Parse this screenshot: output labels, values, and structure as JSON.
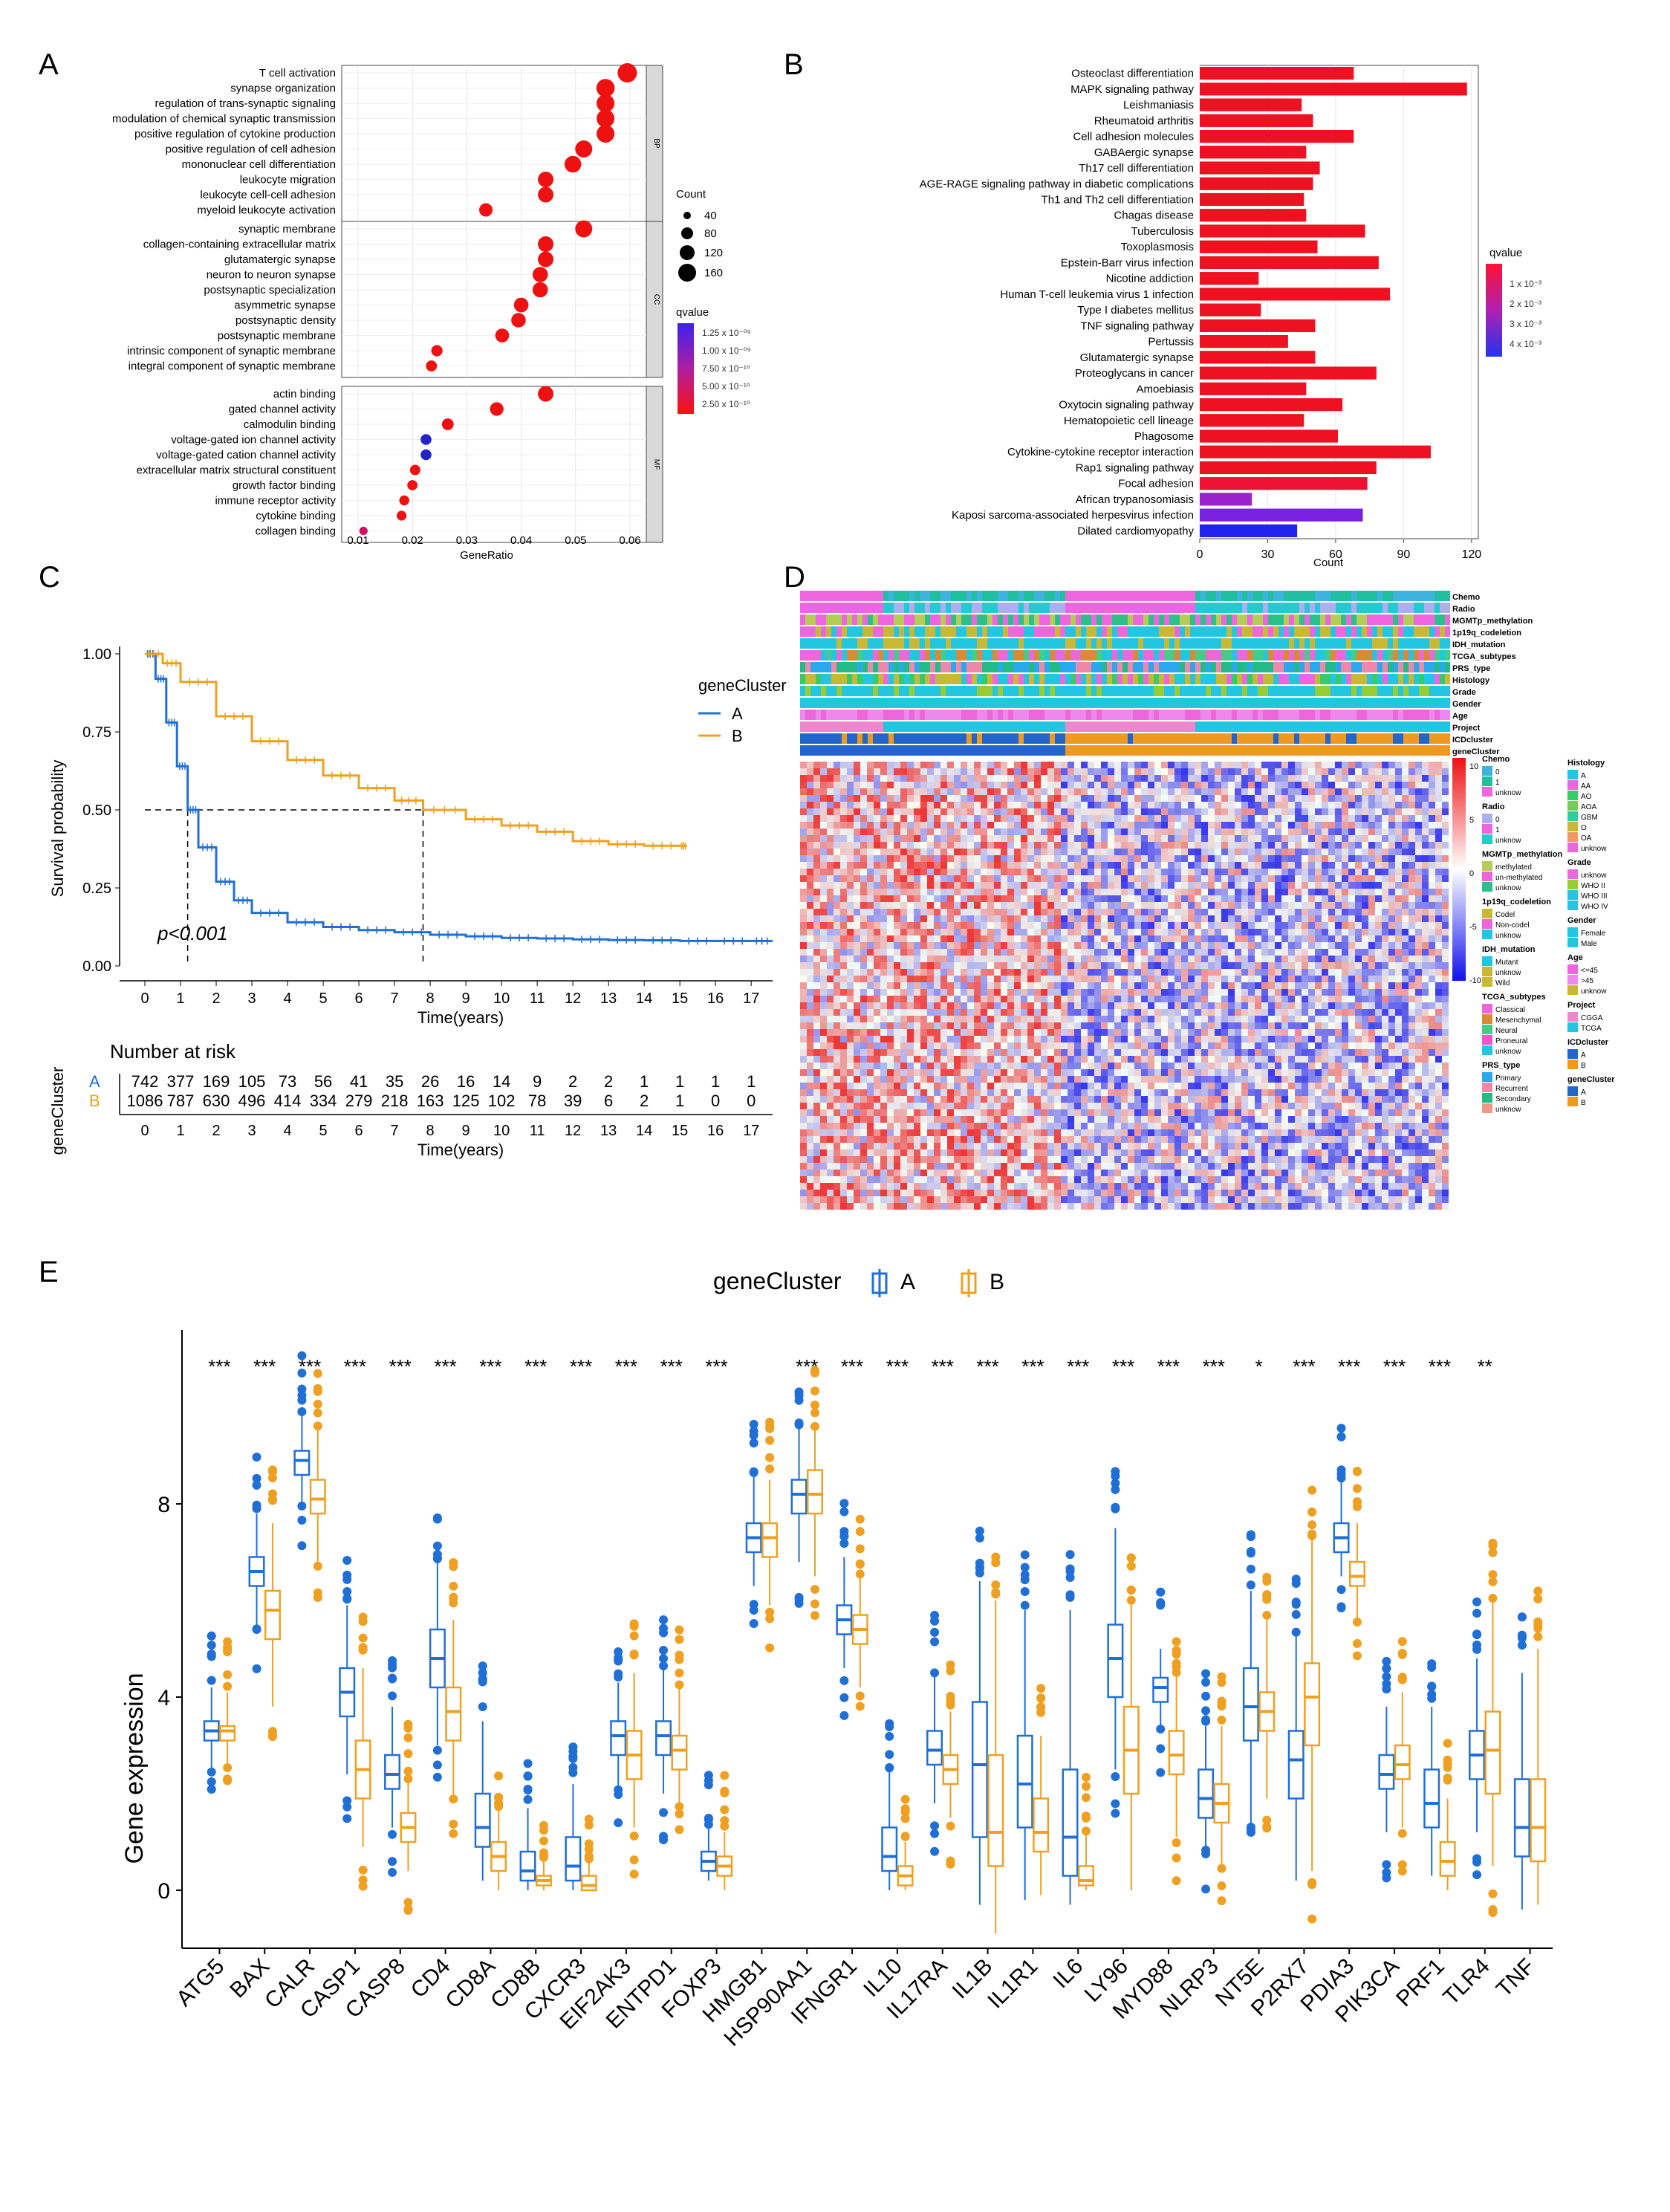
{
  "panels": [
    "A",
    "B",
    "C",
    "D",
    "E"
  ],
  "panelA": {
    "type": "scatter",
    "xlabel": "GeneRatio",
    "xticks": [
      0.01,
      0.02,
      0.03,
      0.04,
      0.05,
      0.06
    ],
    "xlim": [
      0.007,
      0.063
    ],
    "facets": [
      {
        "label": "BP",
        "terms": [
          [
            "T cell activation",
            0.0595,
            180
          ],
          [
            "synapse organization",
            0.0555,
            165
          ],
          [
            "regulation of trans-synaptic signaling",
            0.0555,
            160
          ],
          [
            "modulation of chemical synaptic transmission",
            0.0555,
            160
          ],
          [
            "positive regulation of cytokine production",
            0.0555,
            160
          ],
          [
            "positive regulation of cell adhesion",
            0.0515,
            150
          ],
          [
            "mononuclear cell differentiation",
            0.0495,
            145
          ],
          [
            "leukocyte migration",
            0.0445,
            130
          ],
          [
            "leukocyte cell-cell adhesion",
            0.0445,
            130
          ],
          [
            "myeloid leukocyte activation",
            0.0335,
            100
          ]
        ]
      },
      {
        "label": "CC",
        "terms": [
          [
            "synaptic membrane",
            0.0515,
            150
          ],
          [
            "collagen-containing extracellular matrix",
            0.0445,
            130
          ],
          [
            "glutamatergic synapse",
            0.0445,
            130
          ],
          [
            "neuron to neuron synapse",
            0.0435,
            126
          ],
          [
            "postsynaptic specialization",
            0.0435,
            126
          ],
          [
            "asymmetric synapse",
            0.04,
            117
          ],
          [
            "postsynaptic density",
            0.0395,
            115
          ],
          [
            "postsynaptic membrane",
            0.0365,
            106
          ],
          [
            "intrinsic component of synaptic membrane",
            0.0245,
            72
          ],
          [
            "integral component of synaptic membrane",
            0.0235,
            68
          ]
        ]
      },
      {
        "label": "MF",
        "terms": [
          [
            "actin binding",
            0.0445,
            130
          ],
          [
            "gated channel activity",
            0.0355,
            103
          ],
          [
            "calmodulin binding",
            0.0265,
            78
          ],
          [
            "voltage-gated ion channel activity",
            0.0225,
            66
          ],
          [
            "voltage-gated cation channel activity",
            0.0225,
            66
          ],
          [
            "extracellular matrix structural constituent",
            0.0205,
            60
          ],
          [
            "growth factor binding",
            0.02,
            58
          ],
          [
            "immune receptor activity",
            0.0185,
            54
          ],
          [
            "cytokine binding",
            0.018,
            52
          ],
          [
            "collagen binding",
            0.011,
            32
          ]
        ]
      }
    ],
    "dot_colors": {
      "BP": "#ee1111",
      "CC": "#ee1111",
      "MF_default": "#ee1111",
      "blue": "#2424cc",
      "purple": "#cc1166"
    },
    "count_legend": {
      "title": "Count",
      "values": [
        "40",
        "80",
        "120",
        "160"
      ]
    },
    "qvalue_legend": {
      "title": "qvalue",
      "labels": [
        "1.25 x 10⁻⁰⁹",
        "1.00 x 10⁻⁰⁹",
        "7.50 x 10⁻¹⁰",
        "5.00 x 10⁻¹⁰",
        "2.50 x 10⁻¹⁰"
      ]
    }
  },
  "panelB": {
    "type": "bar",
    "xlabel": "Count",
    "xticks": [
      0,
      30,
      60,
      90,
      120
    ],
    "xlim": [
      0,
      123
    ],
    "categories": [
      "Osteoclast differentiation",
      "MAPK signaling pathway",
      "Leishmaniasis",
      "Rheumatoid arthritis",
      "Cell adhesion molecules",
      "GABAergic synapse",
      "Th17 cell differentiation",
      "AGE-RAGE signaling pathway in diabetic complications",
      "Th1 and Th2 cell differentiation",
      "Chagas disease",
      "Tuberculosis",
      "Toxoplasmosis",
      "Epstein-Barr virus infection",
      "Nicotine addiction",
      "Human T-cell leukemia virus 1 infection",
      "Type I diabetes mellitus",
      "TNF signaling pathway",
      "Pertussis",
      "Glutamatergic synapse",
      "Proteoglycans in cancer",
      "Amoebiasis",
      "Oxytocin signaling pathway",
      "Hematopoietic cell lineage",
      "Phagosome",
      "Cytokine-cytokine receptor interaction",
      "Rap1 signaling pathway",
      "Focal adhesion",
      "African trypanosomiasis",
      "Kaposi sarcoma-associated herpesvirus infection",
      "Dilated cardiomyopathy"
    ],
    "values": [
      68,
      118,
      45,
      50,
      68,
      47,
      53,
      50,
      46,
      47,
      73,
      52,
      79,
      26,
      84,
      27,
      51,
      39,
      51,
      78,
      47,
      63,
      46,
      61,
      102,
      78,
      74,
      23,
      72,
      43
    ],
    "colors": [
      "#ee1122",
      "#ee1122",
      "#ee1122",
      "#ee1122",
      "#ee1122",
      "#ee1122",
      "#ee1122",
      "#ee1122",
      "#ee1122",
      "#ee1122",
      "#ee1122",
      "#ee1122",
      "#ee1122",
      "#ee1122",
      "#ee1122",
      "#ee1122",
      "#ee1122",
      "#ee1122",
      "#ee1122",
      "#ee1122",
      "#ee1122",
      "#ee1122",
      "#ee1122",
      "#ee1122",
      "#ee1122",
      "#ee1122",
      "#ee1133",
      "#9922cc",
      "#7722dd",
      "#2222ee"
    ],
    "qvalue_legend": {
      "title": "qvalue",
      "labels": [
        "1 x 10⁻³",
        "2 x 10⁻³",
        "3 x 10⁻³",
        "4 x 10⁻³"
      ]
    }
  },
  "panelC": {
    "type": "line",
    "ylabel": "Survival probability",
    "xlabel": "Time(years)",
    "yticks": [
      "0.00",
      "0.25",
      "0.50",
      "0.75",
      "1.00"
    ],
    "xticks": [
      "0",
      "1",
      "2",
      "3",
      "4",
      "5",
      "6",
      "7",
      "8",
      "9",
      "10",
      "11",
      "12",
      "13",
      "14",
      "15",
      "16",
      "17"
    ],
    "legend_title": "geneCluster",
    "series": [
      {
        "name": "A",
        "color": "#1f6fd6",
        "x": [
          0,
          0.3,
          0.6,
          0.9,
          1.2,
          1.5,
          2,
          2.5,
          3,
          4,
          5,
          6,
          7,
          8,
          9,
          10,
          11,
          12,
          13,
          14,
          15,
          16,
          17,
          17.6
        ],
        "y": [
          1,
          0.92,
          0.78,
          0.64,
          0.5,
          0.38,
          0.27,
          0.21,
          0.17,
          0.14,
          0.125,
          0.115,
          0.108,
          0.1,
          0.095,
          0.09,
          0.088,
          0.085,
          0.083,
          0.082,
          0.08,
          0.08,
          0.08,
          0.08
        ]
      },
      {
        "name": "B",
        "color": "#f0a020",
        "x": [
          0,
          0.5,
          1,
          2,
          3,
          4,
          5,
          6,
          7,
          7.8,
          9,
          10,
          11,
          12,
          13,
          14,
          15,
          15.2
        ],
        "y": [
          1,
          0.97,
          0.91,
          0.8,
          0.72,
          0.66,
          0.61,
          0.57,
          0.53,
          0.5,
          0.47,
          0.45,
          0.43,
          0.4,
          0.39,
          0.385,
          0.385,
          0.385
        ]
      }
    ],
    "pvalue": "p<0.001",
    "risk_title": "Number at risk",
    "risk_ylabel": "geneCluster",
    "risk_A": [
      "742",
      "377",
      "169",
      "105",
      "73",
      "56",
      "41",
      "35",
      "26",
      "16",
      "14",
      "9",
      "2",
      "2",
      "1",
      "1",
      "1",
      "1"
    ],
    "risk_B": [
      "1086",
      "787",
      "630",
      "496",
      "414",
      "334",
      "279",
      "218",
      "163",
      "125",
      "102",
      "78",
      "39",
      "6",
      "2",
      "1",
      "0",
      "0"
    ]
  },
  "panelD": {
    "type": "heatmap",
    "tracks": [
      "Chemo",
      "Radio",
      "MGMTp_methylation",
      "1p19q_codeletion",
      "IDH_mutation",
      "TCGA_subtypes",
      "PRS_type",
      "Histology",
      "Grade",
      "Gender",
      "Age",
      "Project",
      "ICDcluster",
      "geneCluster"
    ],
    "colorbar_labels": [
      "10",
      "5",
      "0",
      "-5",
      "-10"
    ],
    "legend_col1": [
      {
        "title": "Chemo",
        "items": [
          [
            "0",
            "#3fb3e0"
          ],
          [
            "1",
            "#1fbf9f"
          ],
          [
            "unknow",
            "#ee66dd"
          ]
        ]
      },
      {
        "title": "Radio",
        "items": [
          [
            "0",
            "#aab0ee"
          ],
          [
            "1",
            "#ee66dd"
          ],
          [
            "unknow",
            "#22cccc"
          ]
        ]
      },
      {
        "title": "MGMTp_methylation",
        "items": [
          [
            "methylated",
            "#b5cc55"
          ],
          [
            "un-methylated",
            "#ee66dd"
          ],
          [
            "unknow",
            "#2cbf8a"
          ]
        ]
      },
      {
        "title": "1p19q_codeletion",
        "items": [
          [
            "Codel",
            "#c8b833"
          ],
          [
            "Non-codel",
            "#ee66dd"
          ],
          [
            "unknow",
            "#22c6e0"
          ]
        ]
      },
      {
        "title": "IDH_mutation",
        "items": [
          [
            "Mutant",
            "#22c6e0"
          ],
          [
            "unknow",
            "#c8b833"
          ],
          [
            "Wild",
            "#c8b833"
          ]
        ]
      },
      {
        "title": "TCGA_subtypes",
        "items": [
          [
            "Classical",
            "#ee66dd"
          ],
          [
            "Mesenchymal",
            "#dd8833"
          ],
          [
            "Neural",
            "#44cc88"
          ],
          [
            "Proneural",
            "#ee55cc"
          ],
          [
            "unknow",
            "#22c6e0"
          ]
        ]
      },
      {
        "title": "PRS_type",
        "items": [
          [
            "Primary",
            "#2aa8ee"
          ],
          [
            "Recurrent",
            "#ee88aa"
          ],
          [
            "Secondary",
            "#22bb88"
          ],
          [
            "unknow",
            "#ee9988"
          ]
        ]
      }
    ],
    "legend_col2": [
      {
        "title": "Histology",
        "items": [
          [
            "A",
            "#22c6e0"
          ],
          [
            "AA",
            "#ee66dd"
          ],
          [
            "AO",
            "#33cc66"
          ],
          [
            "AOA",
            "#77cc55"
          ],
          [
            "GBM",
            "#33cc99"
          ],
          [
            "O",
            "#c8b833"
          ],
          [
            "OA",
            "#ee9966"
          ],
          [
            "unknow",
            "#ee66dd"
          ]
        ]
      },
      {
        "title": "Grade",
        "items": [
          [
            "unknow",
            "#ee66dd"
          ],
          [
            "WHO II",
            "#99cc33"
          ],
          [
            "WHO III",
            "#22c6e0"
          ],
          [
            "WHO IV",
            "#22c6e0"
          ]
        ]
      },
      {
        "title": "Gender",
        "items": [
          [
            "Female",
            "#22c6e0"
          ],
          [
            "Male",
            "#22c6e0"
          ]
        ]
      },
      {
        "title": "Age",
        "items": [
          [
            "<=45",
            "#ee66dd"
          ],
          [
            ">45",
            "#ee88ee"
          ],
          [
            "unknow",
            "#c8b833"
          ]
        ]
      },
      {
        "title": "Project",
        "items": [
          [
            "CGGA",
            "#ee88cc"
          ],
          [
            "TCGA",
            "#22c6e0"
          ]
        ]
      },
      {
        "title": "ICDcluster",
        "items": [
          [
            "A",
            "#2266cc"
          ],
          [
            "B",
            "#ee9922"
          ]
        ]
      },
      {
        "title": "geneCluster",
        "items": [
          [
            "A",
            "#2266cc"
          ],
          [
            "B",
            "#ee9922"
          ]
        ]
      }
    ]
  },
  "panelE": {
    "type": "bar",
    "legend_title": "geneCluster",
    "legend_labels": [
      "A",
      "B"
    ],
    "ylabel": "Gene expression",
    "yticks": [
      "0",
      "4",
      "8"
    ],
    "colors": {
      "A": "#1f6fd6",
      "B": "#f0a020"
    },
    "genes": [
      "ATG5",
      "BAX",
      "CALR",
      "CASP1",
      "CASP8",
      "CD4",
      "CD8A",
      "CD8B",
      "CXCR3",
      "EIF2AK3",
      "ENTPD1",
      "FOXP3",
      "HMGB1",
      "HSP90AA1",
      "IFNGR1",
      "IL10",
      "IL17RA",
      "IL1B",
      "IL1R1",
      "IL6",
      "LY96",
      "MYD88",
      "NLRP3",
      "NT5E",
      "P2RX7",
      "PDIA3",
      "PIK3CA",
      "PRF1",
      "TLR4",
      "TNF"
    ],
    "sig": [
      "***",
      "***",
      "***",
      "***",
      "***",
      "***",
      "***",
      "***",
      "***",
      "***",
      "***",
      "***",
      "",
      "***",
      "***",
      "***",
      "***",
      "***",
      "***",
      "***",
      "***",
      "***",
      "***",
      "*",
      "***",
      "***",
      "***",
      "***",
      "**",
      ""
    ],
    "A": [
      [
        3.1,
        3.3,
        3.5,
        2.5,
        4.2
      ],
      [
        6.3,
        6.6,
        6.9,
        5.5,
        7.8
      ],
      [
        8.6,
        8.9,
        9.1,
        8.0,
        9.9
      ],
      [
        3.6,
        4.1,
        4.6,
        2.4,
        5.9
      ],
      [
        2.1,
        2.4,
        2.8,
        1.3,
        3.8
      ],
      [
        4.2,
        4.8,
        5.4,
        3.0,
        6.8
      ],
      [
        0.9,
        1.3,
        2.0,
        0.2,
        3.5
      ],
      [
        0.2,
        0.4,
        0.8,
        0.0,
        1.7
      ],
      [
        0.2,
        0.5,
        1.1,
        0.0,
        2.2
      ],
      [
        2.8,
        3.2,
        3.5,
        2.1,
        4.3
      ],
      [
        2.8,
        3.2,
        3.5,
        2.0,
        4.6
      ],
      [
        0.4,
        0.6,
        0.8,
        0.2,
        1.3
      ],
      [
        7.0,
        7.3,
        7.6,
        6.3,
        8.6
      ],
      [
        7.8,
        8.2,
        8.5,
        6.8,
        9.6
      ],
      [
        5.3,
        5.6,
        5.9,
        4.6,
        6.9
      ],
      [
        0.4,
        0.7,
        1.3,
        0.0,
        2.5
      ],
      [
        2.6,
        2.9,
        3.3,
        1.8,
        4.5
      ],
      [
        1.1,
        2.6,
        3.9,
        -0.3,
        6.4
      ],
      [
        1.3,
        2.2,
        3.2,
        -0.2,
        5.8
      ],
      [
        0.3,
        1.1,
        2.5,
        -0.3,
        5.8
      ],
      [
        4.0,
        4.8,
        5.5,
        2.5,
        7.5
      ],
      [
        3.9,
        4.2,
        4.4,
        3.4,
        5.0
      ],
      [
        1.5,
        1.9,
        2.5,
        0.9,
        3.4
      ],
      [
        3.1,
        3.8,
        4.6,
        1.4,
        6.2
      ],
      [
        1.9,
        2.7,
        3.3,
        0.2,
        5.3
      ],
      [
        7.0,
        7.3,
        7.6,
        6.5,
        8.5
      ],
      [
        2.1,
        2.4,
        2.8,
        1.2,
        3.8
      ],
      [
        1.3,
        1.8,
        2.5,
        0.3,
        3.8
      ],
      [
        2.3,
        2.8,
        3.3,
        1.2,
        4.8
      ],
      [
        0.7,
        1.3,
        2.3,
        -0.4,
        4.5
      ]
    ],
    "B": [
      [
        3.1,
        3.3,
        3.4,
        2.6,
        4.1
      ],
      [
        5.2,
        5.8,
        6.2,
        3.8,
        7.6
      ],
      [
        7.8,
        8.1,
        8.5,
        6.8,
        9.6
      ],
      [
        1.9,
        2.5,
        3.1,
        0.9,
        4.6
      ],
      [
        1.0,
        1.3,
        1.6,
        0.4,
        2.3
      ],
      [
        3.1,
        3.7,
        4.2,
        1.9,
        5.6
      ],
      [
        0.4,
        0.7,
        1.0,
        0.0,
        1.7
      ],
      [
        0.1,
        0.2,
        0.3,
        0.0,
        0.6
      ],
      [
        0.0,
        0.1,
        0.3,
        0.0,
        0.6
      ],
      [
        2.3,
        2.8,
        3.3,
        1.3,
        4.5
      ],
      [
        2.5,
        2.9,
        3.2,
        1.8,
        4.2
      ],
      [
        0.3,
        0.5,
        0.7,
        0.0,
        1.2
      ],
      [
        6.9,
        7.3,
        7.6,
        5.9,
        8.5
      ],
      [
        7.8,
        8.2,
        8.7,
        6.5,
        9.6
      ],
      [
        5.1,
        5.4,
        5.7,
        4.2,
        6.5
      ],
      [
        0.1,
        0.3,
        0.5,
        0.0,
        1.0
      ],
      [
        2.2,
        2.5,
        2.8,
        1.5,
        3.7
      ],
      [
        0.5,
        1.2,
        2.8,
        -0.9,
        6.0
      ],
      [
        0.8,
        1.2,
        1.9,
        -0.1,
        3.2
      ],
      [
        0.1,
        0.2,
        0.5,
        0.0,
        1.2
      ],
      [
        2.0,
        2.9,
        3.8,
        0.0,
        6.0
      ],
      [
        2.4,
        2.8,
        3.3,
        1.1,
        4.5
      ],
      [
        1.4,
        1.8,
        2.2,
        0.5,
        3.4
      ],
      [
        3.3,
        3.7,
        4.1,
        1.9,
        5.6
      ],
      [
        3.0,
        4.0,
        4.7,
        0.4,
        7.3
      ],
      [
        6.3,
        6.5,
        6.8,
        5.6,
        7.6
      ],
      [
        2.3,
        2.6,
        3.0,
        1.3,
        4.1
      ],
      [
        0.3,
        0.6,
        1.0,
        0.0,
        1.9
      ],
      [
        2.0,
        2.9,
        3.7,
        0.5,
        6.0
      ],
      [
        0.6,
        1.3,
        2.3,
        -0.3,
        5.0
      ]
    ]
  }
}
